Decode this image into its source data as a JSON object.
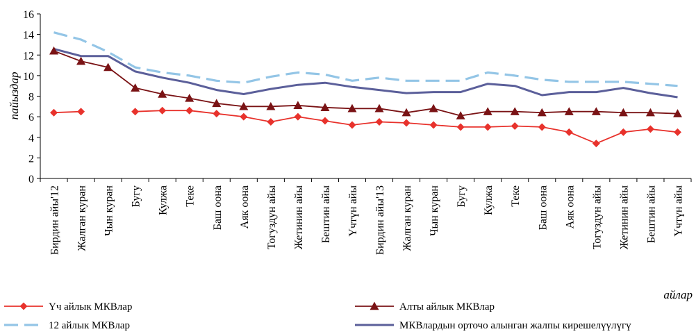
{
  "chart_data": {
    "type": "line",
    "xlabel": "айлар",
    "ylabel": "пайыздар",
    "ylim": [
      0,
      16
    ],
    "yticks": [
      0,
      2,
      4,
      6,
      8,
      10,
      12,
      14,
      16
    ],
    "grid": false,
    "legend_position": "bottom",
    "categories": [
      "Бирдин айы'12",
      "Жалган куран",
      "Чын куран",
      "Бугу",
      "Кулжа",
      "Теке",
      "Баш оона",
      "Аяк оона",
      "Тогуздун айы",
      "Жетинин айы",
      "Бештин айы",
      "Үчтүн айы",
      "Бирдин айы'13",
      "Жалган куран",
      "Чын куран",
      "Бугу",
      "Кулжа",
      "Теке",
      "Баш оона",
      "Аяк оона",
      "Тогуздун айы",
      "Жетинин айы",
      "Бештин айы",
      "Үчтүн айы"
    ],
    "series": [
      {
        "name": "Үч айлык МКВлар",
        "color": "#e8322c",
        "marker": "diamond",
        "dash": "solid",
        "values": [
          6.4,
          6.5,
          null,
          6.5,
          6.6,
          6.6,
          6.3,
          6.0,
          5.5,
          6.0,
          5.6,
          5.2,
          5.5,
          5.4,
          5.2,
          5.0,
          5.0,
          5.1,
          5.0,
          4.5,
          3.4,
          4.5,
          4.8,
          4.5
        ]
      },
      {
        "name": "Алты айлык МКВлар",
        "color": "#7a1315",
        "marker": "triangle",
        "dash": "solid",
        "values": [
          12.4,
          11.4,
          10.8,
          8.8,
          8.2,
          7.8,
          7.3,
          7.0,
          7.0,
          7.1,
          6.9,
          6.8,
          6.8,
          6.4,
          6.8,
          6.1,
          6.5,
          6.5,
          6.4,
          6.5,
          6.5,
          6.4,
          6.4,
          6.3
        ]
      },
      {
        "name": "12 айлык МКВлар",
        "color": "#93c5e6",
        "marker": "none",
        "dash": "dashed",
        "values": [
          14.2,
          13.5,
          12.3,
          10.8,
          10.3,
          10.0,
          9.5,
          9.3,
          9.9,
          10.3,
          10.1,
          9.5,
          9.8,
          9.5,
          9.5,
          9.5,
          10.3,
          10.0,
          9.6,
          9.4,
          9.4,
          9.4,
          9.2,
          9.0
        ]
      },
      {
        "name": "МКВлардын орточо алынган жалпы кирешелүүлүгү",
        "color": "#5b5f9a",
        "marker": "none",
        "dash": "solid",
        "values": [
          12.6,
          11.9,
          11.9,
          10.4,
          9.8,
          9.3,
          8.6,
          8.2,
          8.7,
          9.1,
          9.3,
          8.9,
          8.6,
          8.3,
          8.4,
          8.4,
          9.2,
          9.0,
          8.1,
          8.4,
          8.4,
          8.8,
          8.3,
          7.9
        ]
      }
    ]
  }
}
